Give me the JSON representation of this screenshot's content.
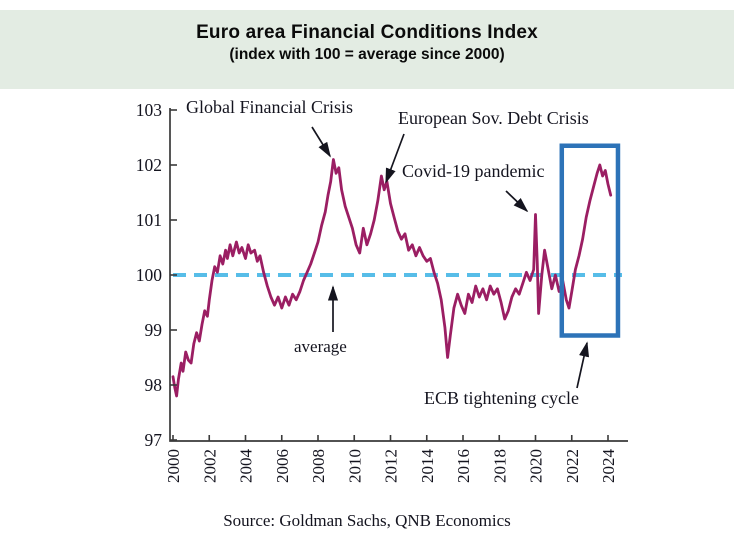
{
  "chart_data": {
    "type": "line",
    "title": "Euro area Financial Conditions Index",
    "subtitle": "(index with 100 = average since 2000)",
    "source": "Source: Goldman Sachs, QNB Economics",
    "xlabel": "",
    "ylabel": "",
    "grid": false,
    "legend_position": "none",
    "ylim": [
      97,
      103
    ],
    "xlim": [
      2000,
      2024.6
    ],
    "y_ticks": [
      97,
      98,
      99,
      100,
      101,
      102,
      103
    ],
    "x_ticks": [
      2000,
      2002,
      2004,
      2006,
      2008,
      2010,
      2012,
      2014,
      2016,
      2018,
      2020,
      2022,
      2024
    ],
    "colors": {
      "series": "#9b1e63",
      "average_line": "#57bde8",
      "highlight_box": "#2d73b8",
      "axis": "#3a3a3a",
      "annotation_text": "#14141f",
      "title_band": "#e3ece3"
    },
    "average_line": {
      "value": 100,
      "label": "average",
      "style": "dashed",
      "color": "#57bde8"
    },
    "highlight_box": {
      "label": "ECB tightening cycle",
      "x_from": 2021.45,
      "x_to": 2024.55,
      "y_from": 98.9,
      "y_to": 102.35,
      "color": "#2d73b8"
    },
    "annotations": [
      {
        "id": "gfc",
        "text": "Global Financial Crisis",
        "points_to": {
          "x": 2008.8,
          "y": 102.1
        }
      },
      {
        "id": "esdc",
        "text": "European Sov. Debt Crisis",
        "points_to": {
          "x": 2011.5,
          "y": 101.8
        }
      },
      {
        "id": "covid",
        "text": "Covid-19 pandemic",
        "points_to": {
          "x": 2020.0,
          "y": 101.1
        }
      },
      {
        "id": "avg",
        "text": "average",
        "points_to": {
          "x": 2008.8,
          "y": 100.0
        }
      },
      {
        "id": "ecb",
        "text": "ECB tightening cycle",
        "points_to": {
          "x": 2022.9,
          "y": 98.9
        }
      }
    ],
    "series": [
      {
        "name": "Euro area Financial Conditions Index",
        "color": "#9b1e63",
        "points": [
          [
            2000.0,
            98.15
          ],
          [
            2000.1,
            97.95
          ],
          [
            2000.2,
            97.8
          ],
          [
            2000.3,
            98.1
          ],
          [
            2000.45,
            98.4
          ],
          [
            2000.55,
            98.25
          ],
          [
            2000.7,
            98.6
          ],
          [
            2000.85,
            98.45
          ],
          [
            2001.0,
            98.4
          ],
          [
            2001.15,
            98.75
          ],
          [
            2001.3,
            98.95
          ],
          [
            2001.45,
            98.8
          ],
          [
            2001.6,
            99.1
          ],
          [
            2001.75,
            99.35
          ],
          [
            2001.9,
            99.25
          ],
          [
            2002.0,
            99.55
          ],
          [
            2002.15,
            99.9
          ],
          [
            2002.3,
            100.15
          ],
          [
            2002.45,
            100.05
          ],
          [
            2002.6,
            100.35
          ],
          [
            2002.75,
            100.2
          ],
          [
            2002.9,
            100.45
          ],
          [
            2003.0,
            100.3
          ],
          [
            2003.15,
            100.55
          ],
          [
            2003.3,
            100.35
          ],
          [
            2003.5,
            100.6
          ],
          [
            2003.65,
            100.4
          ],
          [
            2003.8,
            100.5
          ],
          [
            2004.0,
            100.3
          ],
          [
            2004.15,
            100.55
          ],
          [
            2004.3,
            100.4
          ],
          [
            2004.5,
            100.45
          ],
          [
            2004.65,
            100.25
          ],
          [
            2004.8,
            100.35
          ],
          [
            2005.0,
            100.05
          ],
          [
            2005.2,
            99.8
          ],
          [
            2005.4,
            99.6
          ],
          [
            2005.6,
            99.45
          ],
          [
            2005.8,
            99.6
          ],
          [
            2006.0,
            99.4
          ],
          [
            2006.2,
            99.6
          ],
          [
            2006.4,
            99.45
          ],
          [
            2006.6,
            99.65
          ],
          [
            2006.8,
            99.55
          ],
          [
            2007.0,
            99.7
          ],
          [
            2007.2,
            99.9
          ],
          [
            2007.4,
            100.05
          ],
          [
            2007.6,
            100.2
          ],
          [
            2007.8,
            100.4
          ],
          [
            2008.0,
            100.6
          ],
          [
            2008.2,
            100.9
          ],
          [
            2008.4,
            101.15
          ],
          [
            2008.55,
            101.45
          ],
          [
            2008.7,
            101.7
          ],
          [
            2008.85,
            102.1
          ],
          [
            2009.0,
            101.85
          ],
          [
            2009.15,
            101.95
          ],
          [
            2009.3,
            101.55
          ],
          [
            2009.5,
            101.25
          ],
          [
            2009.7,
            101.05
          ],
          [
            2009.9,
            100.85
          ],
          [
            2010.1,
            100.55
          ],
          [
            2010.3,
            100.4
          ],
          [
            2010.5,
            100.85
          ],
          [
            2010.7,
            100.55
          ],
          [
            2010.9,
            100.75
          ],
          [
            2011.1,
            101.0
          ],
          [
            2011.3,
            101.35
          ],
          [
            2011.5,
            101.8
          ],
          [
            2011.65,
            101.55
          ],
          [
            2011.8,
            101.7
          ],
          [
            2012.0,
            101.3
          ],
          [
            2012.2,
            101.05
          ],
          [
            2012.4,
            100.8
          ],
          [
            2012.6,
            100.65
          ],
          [
            2012.8,
            100.75
          ],
          [
            2013.0,
            100.45
          ],
          [
            2013.2,
            100.55
          ],
          [
            2013.4,
            100.35
          ],
          [
            2013.6,
            100.5
          ],
          [
            2013.8,
            100.35
          ],
          [
            2014.0,
            100.25
          ],
          [
            2014.2,
            100.3
          ],
          [
            2014.4,
            100.05
          ],
          [
            2014.6,
            99.85
          ],
          [
            2014.8,
            99.55
          ],
          [
            2015.0,
            99.05
          ],
          [
            2015.15,
            98.5
          ],
          [
            2015.3,
            98.9
          ],
          [
            2015.5,
            99.4
          ],
          [
            2015.7,
            99.65
          ],
          [
            2015.9,
            99.45
          ],
          [
            2016.1,
            99.3
          ],
          [
            2016.3,
            99.65
          ],
          [
            2016.5,
            99.5
          ],
          [
            2016.7,
            99.8
          ],
          [
            2016.9,
            99.6
          ],
          [
            2017.1,
            99.75
          ],
          [
            2017.3,
            99.55
          ],
          [
            2017.5,
            99.8
          ],
          [
            2017.7,
            99.65
          ],
          [
            2017.9,
            99.75
          ],
          [
            2018.1,
            99.5
          ],
          [
            2018.3,
            99.2
          ],
          [
            2018.5,
            99.35
          ],
          [
            2018.7,
            99.6
          ],
          [
            2018.9,
            99.75
          ],
          [
            2019.1,
            99.65
          ],
          [
            2019.3,
            99.85
          ],
          [
            2019.5,
            100.05
          ],
          [
            2019.7,
            99.9
          ],
          [
            2019.9,
            100.1
          ],
          [
            2020.0,
            101.1
          ],
          [
            2020.1,
            100.2
          ],
          [
            2020.17,
            99.3
          ],
          [
            2020.35,
            100.0
          ],
          [
            2020.5,
            100.45
          ],
          [
            2020.7,
            100.1
          ],
          [
            2020.9,
            99.75
          ],
          [
            2021.1,
            100.0
          ],
          [
            2021.3,
            99.7
          ],
          [
            2021.5,
            99.9
          ],
          [
            2021.7,
            99.55
          ],
          [
            2021.85,
            99.4
          ],
          [
            2022.0,
            99.7
          ],
          [
            2022.2,
            100.1
          ],
          [
            2022.4,
            100.35
          ],
          [
            2022.6,
            100.65
          ],
          [
            2022.8,
            101.05
          ],
          [
            2023.0,
            101.35
          ],
          [
            2023.2,
            101.6
          ],
          [
            2023.4,
            101.85
          ],
          [
            2023.55,
            102.0
          ],
          [
            2023.7,
            101.8
          ],
          [
            2023.85,
            101.9
          ],
          [
            2024.0,
            101.65
          ],
          [
            2024.15,
            101.45
          ]
        ]
      }
    ]
  }
}
